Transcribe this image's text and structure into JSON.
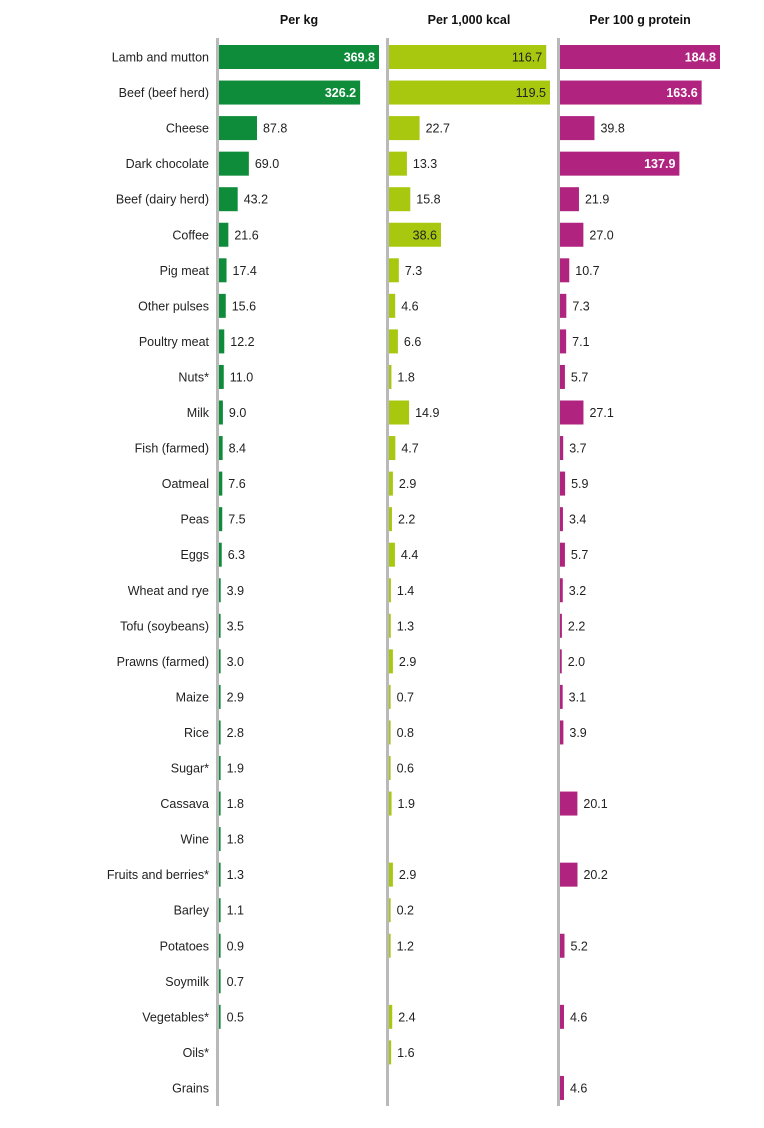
{
  "chart_data": {
    "type": "bar",
    "orientation": "horizontal",
    "categories": [
      "Lamb and mutton",
      "Beef (beef herd)",
      "Cheese",
      "Dark chocolate",
      "Beef (dairy herd)",
      "Coffee",
      "Pig meat",
      "Other pulses",
      "Poultry meat",
      "Nuts*",
      "Milk",
      "Fish (farmed)",
      "Oatmeal",
      "Peas",
      "Eggs",
      "Wheat and rye",
      "Tofu (soybeans)",
      "Prawns (farmed)",
      "Maize",
      "Rice",
      "Sugar*",
      "Cassava",
      "Wine",
      "Fruits and berries*",
      "Barley",
      "Potatoes",
      "Soymilk",
      "Vegetables*",
      "Oils*",
      "Grains"
    ],
    "series": [
      {
        "name": "Per kg",
        "color": "#0e8c3a",
        "xlim": [
          0,
          369.8
        ],
        "values": [
          369.8,
          326.2,
          87.8,
          69.0,
          43.2,
          21.6,
          17.4,
          15.6,
          12.2,
          11.0,
          9.0,
          8.4,
          7.6,
          7.5,
          6.3,
          3.9,
          3.5,
          3.0,
          2.9,
          2.8,
          1.9,
          1.8,
          1.8,
          1.3,
          1.1,
          0.9,
          0.7,
          0.5,
          null,
          null
        ],
        "labels": [
          "369.8",
          "326.2",
          "87.8",
          "69.0",
          "43.2",
          "21.6",
          "17.4",
          "15.6",
          "12.2",
          "11.0",
          "9.0",
          "8.4",
          "7.6",
          "7.5",
          "6.3",
          "3.9",
          "3.5",
          "3.0",
          "2.9",
          "2.8",
          "1.9",
          "1.8",
          "1.8",
          "1.3",
          "1.1",
          "0.9",
          "0.7",
          "0.5",
          "",
          ""
        ]
      },
      {
        "name": "Per 1,000 kcal",
        "color": "#a7c80f",
        "xlim": [
          0,
          119.5
        ],
        "values": [
          116.7,
          119.5,
          22.7,
          13.3,
          15.8,
          38.6,
          7.3,
          4.6,
          6.6,
          1.8,
          14.9,
          4.7,
          2.9,
          2.2,
          4.4,
          1.4,
          1.3,
          2.9,
          0.7,
          0.8,
          0.6,
          1.9,
          null,
          2.9,
          0.2,
          1.2,
          null,
          2.4,
          1.6,
          null
        ],
        "labels": [
          "116.7",
          "119.5",
          "22.7",
          "13.3",
          "15.8",
          "38.6",
          "7.3",
          "4.6",
          "6.6",
          "1.8",
          "14.9",
          "4.7",
          "2.9",
          "2.2",
          "4.4",
          "1.4",
          "1.3",
          "2.9",
          "0.7",
          "0.8",
          "0.6",
          "1.9",
          "",
          "2.9",
          "0.2",
          "1.2",
          "",
          "2.4",
          "1.6",
          ""
        ]
      },
      {
        "name": "Per 100 g protein",
        "color": "#b0247f",
        "xlim": [
          0,
          184.8
        ],
        "values": [
          184.8,
          163.6,
          39.8,
          137.9,
          21.9,
          27.0,
          10.7,
          7.3,
          7.1,
          5.7,
          27.1,
          3.7,
          5.9,
          3.4,
          5.7,
          3.2,
          2.2,
          2.0,
          3.1,
          3.9,
          null,
          20.1,
          null,
          20.2,
          null,
          5.2,
          null,
          4.6,
          null,
          4.6
        ],
        "labels": [
          "184.8",
          "163.6",
          "39.8",
          "137.9",
          "21.9",
          "27.0",
          "10.7",
          "7.3",
          "7.1",
          "5.7",
          "27.1",
          "3.7",
          "5.9",
          "3.4",
          "5.7",
          "3.2",
          "2.2",
          "2.0",
          "3.1",
          "3.9",
          "",
          "20.1",
          "",
          "20.2",
          "",
          "5.2",
          "",
          "4.6",
          "",
          "4.6"
        ]
      }
    ],
    "title": "",
    "xlabel": "",
    "ylabel": "",
    "grid": false,
    "legend": "none"
  }
}
